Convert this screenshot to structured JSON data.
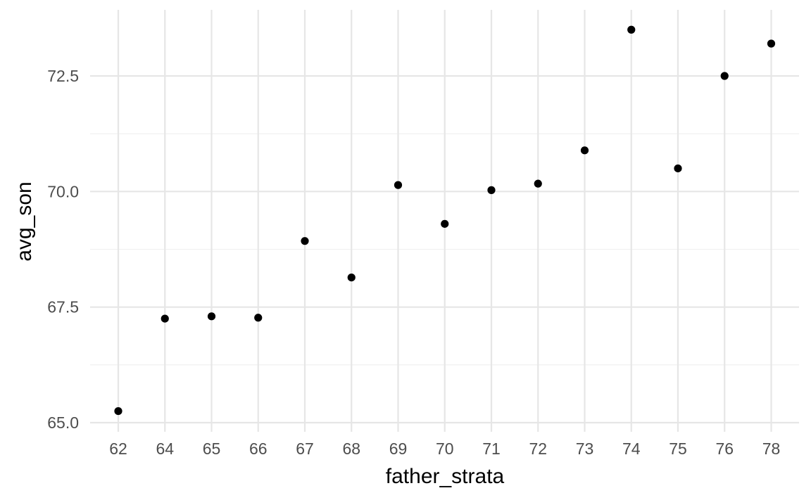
{
  "chart_data": {
    "type": "scatter",
    "xlabel": "father_strata",
    "ylabel": "avg_son",
    "x_tick_labels": [
      "62",
      "64",
      "65",
      "66",
      "67",
      "68",
      "69",
      "70",
      "71",
      "72",
      "73",
      "74",
      "75",
      "76",
      "78"
    ],
    "y_ticks": [
      65.0,
      67.5,
      70.0,
      72.5
    ],
    "y_tick_labels": [
      "65.0",
      "67.5",
      "70.0",
      "72.5"
    ],
    "y_minor_ticks": [
      66.25,
      68.75,
      71.25
    ],
    "ylim": [
      64.8,
      73.8
    ],
    "x_scale": "discrete",
    "grid": true,
    "legend": "none",
    "point_color": "#000000",
    "points": [
      {
        "x": "62",
        "y": 65.25
      },
      {
        "x": "64",
        "y": 67.25
      },
      {
        "x": "65",
        "y": 67.3
      },
      {
        "x": "66",
        "y": 67.27
      },
      {
        "x": "67",
        "y": 68.93
      },
      {
        "x": "68",
        "y": 68.14
      },
      {
        "x": "69",
        "y": 70.14
      },
      {
        "x": "70",
        "y": 69.3
      },
      {
        "x": "71",
        "y": 70.03
      },
      {
        "x": "72",
        "y": 70.17
      },
      {
        "x": "73",
        "y": 70.89
      },
      {
        "x": "74",
        "y": 73.5
      },
      {
        "x": "75",
        "y": 70.5
      },
      {
        "x": "76",
        "y": 72.5
      },
      {
        "x": "78",
        "y": 73.2
      }
    ]
  }
}
